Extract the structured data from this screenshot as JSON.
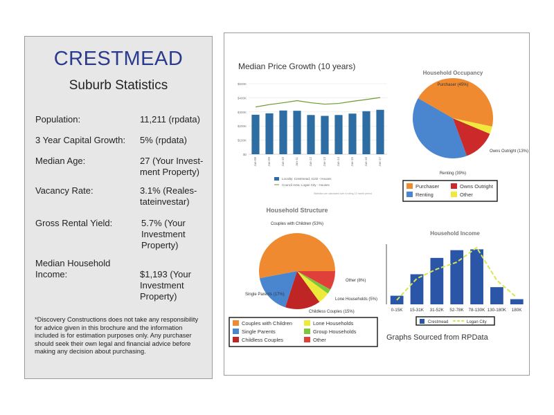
{
  "left": {
    "title": "CRESTMEAD",
    "subtitle": "Suburb Statistics",
    "stats": [
      {
        "label": "Population:",
        "value": "11,211 (rpdata)"
      },
      {
        "label": "3 Year Capital Growth:",
        "value": "5% (rpdata)"
      },
      {
        "label": "Median Age:",
        "value": "27 (Your Invest-ment Property)"
      },
      {
        "label": "Vacancy Rate:",
        "value": "3.1% (Reales-tateinvestar)"
      },
      {
        "label": "Gross Rental Yield:",
        "value": "5.7% (Your Investment Property)"
      },
      {
        "label": "Median Household Income:",
        "value": "$1,193 (Your Investment Property)"
      }
    ],
    "disclaimer": "*Discovery Constructions does not take any responsibility for advice given in this brochure and the information included is for estimation purposes only. Any purchaser should seek their own legal and financial advice before making any decision about purchasing."
  },
  "right": {
    "source": "Graphs Sourced from RPData"
  },
  "chart_data": [
    {
      "type": "bar",
      "title": "Median Price Growth (10 years)",
      "categories": [
        "Jan-08",
        "Jan-09",
        "Jan-10",
        "Jan-11",
        "Jan-12",
        "Jan-13",
        "Jan-14",
        "Jan-15",
        "Jan-16",
        "Jan-17"
      ],
      "yticks": [
        "$0",
        "$100K",
        "$200K",
        "$300K",
        "$400K",
        "$500K"
      ],
      "ylim": [
        0,
        500
      ],
      "series": [
        {
          "name": "Locality: Crestmead, 4132 - Houses",
          "type": "bar",
          "color": "#2e6da4",
          "values": [
            280,
            290,
            310,
            308,
            278,
            272,
            278,
            288,
            305,
            315
          ]
        },
        {
          "name": "Council Area: Logan City - Houses",
          "type": "line",
          "color": "#6a9a2a",
          "values": [
            335,
            352,
            365,
            380,
            365,
            355,
            360,
            375,
            388,
            402
          ]
        }
      ],
      "note": "Statistics are calculated over a rolling 12 month period"
    },
    {
      "type": "pie",
      "title": "Household Occupancy",
      "slices": [
        {
          "label": "Purchaser",
          "value": 45,
          "color": "#ef8a30"
        },
        {
          "label": "Renting",
          "value": 39,
          "color": "#4a86cf"
        },
        {
          "label": "Owns Outright",
          "value": 13,
          "color": "#cc2a2a"
        },
        {
          "label": "Other",
          "value": 3,
          "color": "#f0e83a"
        }
      ],
      "callouts": [
        "Purchaser (45%)",
        "Renting (39%)",
        "Owns Outright (13%)"
      ]
    },
    {
      "type": "pie",
      "title": "Household Structure",
      "slices": [
        {
          "label": "Couples with Children",
          "value": 53,
          "color": "#ef8a30"
        },
        {
          "label": "Single Parents",
          "value": 17,
          "color": "#4a86cf"
        },
        {
          "label": "Childless Couples",
          "value": 15,
          "color": "#c02525"
        },
        {
          "label": "Lone Households",
          "value": 5,
          "color": "#eeea3a"
        },
        {
          "label": "Group Households",
          "value": 2,
          "color": "#7cc83a"
        },
        {
          "label": "Other",
          "value": 8,
          "color": "#e0403a"
        }
      ],
      "callouts": [
        "Couples with Children (53%)",
        "Single Parents (17%)",
        "Childless Couples (15%)",
        "Lone Households (5%)",
        "Other (8%)"
      ]
    },
    {
      "type": "bar",
      "title": "Household Income",
      "categories": [
        "0-15K",
        "15-31K",
        "31-52K",
        "52-78K",
        "78-130K",
        "130-180K",
        "180K"
      ],
      "series": [
        {
          "name": "Crestmead",
          "type": "bar",
          "color": "#2b56a8",
          "values": [
            1.0,
            3.5,
            5.4,
            6.3,
            6.4,
            2.0,
            0.6
          ]
        },
        {
          "name": "Logan City",
          "type": "line",
          "color": "#d8e650",
          "values": [
            0.5,
            3.0,
            4.1,
            4.9,
            6.6,
            2.8,
            0.8
          ]
        }
      ],
      "ylim": [
        0,
        7
      ]
    }
  ]
}
